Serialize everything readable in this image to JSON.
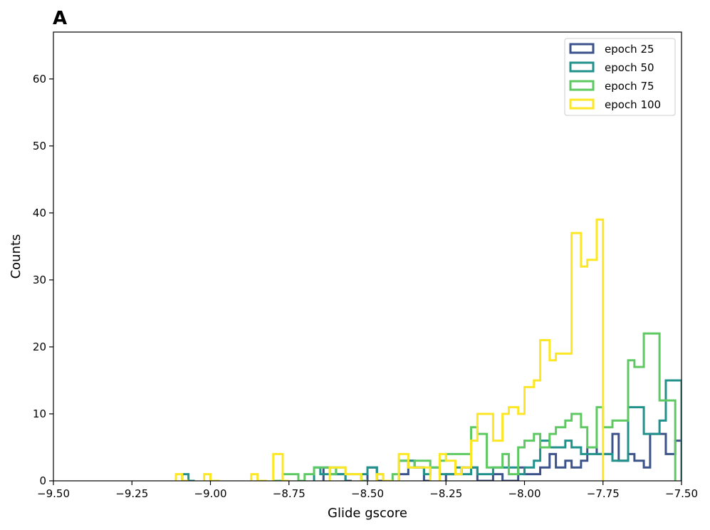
{
  "panel_label": "A",
  "chart_data": {
    "type": "histogram",
    "title": "",
    "xlabel": "Glide gscore",
    "ylabel": "Counts",
    "xlim": [
      -9.5,
      -7.5
    ],
    "ylim": [
      0,
      67
    ],
    "x_ticks": [
      -9.5,
      -9.25,
      -9.0,
      -8.75,
      -8.5,
      -8.25,
      -8.0,
      -7.75,
      -7.5
    ],
    "x_tick_labels": [
      "−9.50",
      "−9.25",
      "−9.00",
      "−8.75",
      "−8.50",
      "−8.25",
      "−8.00",
      "−7.75",
      "−7.50"
    ],
    "y_ticks": [
      0,
      10,
      20,
      30,
      40,
      50,
      60
    ],
    "y_tick_labels": [
      "0",
      "10",
      "20",
      "30",
      "40",
      "50",
      "60"
    ],
    "histtype": "step",
    "bin_width": 0.025,
    "grid": false,
    "legend_position": "top-right",
    "series": [
      {
        "name": "epoch 25",
        "color": "#3b528b",
        "bins": [
          [
            -8.64,
            -8.62,
            2
          ],
          [
            -8.62,
            -8.6,
            1
          ],
          [
            -8.6,
            -8.57,
            1
          ],
          [
            -8.57,
            -8.55,
            0
          ],
          [
            -8.5,
            -8.47,
            2
          ],
          [
            -8.47,
            -8.45,
            0
          ],
          [
            -8.4,
            -8.37,
            1
          ],
          [
            -8.37,
            -8.35,
            3
          ],
          [
            -8.35,
            -8.32,
            2
          ],
          [
            -8.32,
            -8.3,
            0
          ],
          [
            -8.25,
            -8.22,
            1
          ],
          [
            -8.22,
            -8.2,
            1
          ],
          [
            -8.2,
            -8.17,
            2
          ],
          [
            -8.17,
            -8.15,
            2
          ],
          [
            -8.15,
            -8.12,
            0
          ],
          [
            -8.12,
            -8.1,
            0
          ],
          [
            -8.1,
            -8.07,
            1
          ],
          [
            -8.07,
            -8.05,
            0
          ],
          [
            -8.05,
            -8.02,
            0
          ],
          [
            -8.02,
            -8.0,
            2
          ],
          [
            -8.0,
            -7.97,
            1
          ],
          [
            -7.97,
            -7.95,
            1
          ],
          [
            -7.95,
            -7.92,
            2
          ],
          [
            -7.92,
            -7.9,
            4
          ],
          [
            -7.9,
            -7.87,
            2
          ],
          [
            -7.87,
            -7.85,
            3
          ],
          [
            -7.85,
            -7.82,
            2
          ],
          [
            -7.82,
            -7.8,
            3
          ],
          [
            -7.8,
            -7.77,
            5
          ],
          [
            -7.77,
            -7.75,
            4
          ],
          [
            -7.75,
            -7.72,
            4
          ],
          [
            -7.72,
            -7.7,
            7
          ],
          [
            -7.7,
            -7.67,
            3
          ],
          [
            -7.67,
            -7.65,
            4
          ],
          [
            -7.65,
            -7.62,
            3
          ],
          [
            -7.62,
            -7.6,
            2
          ],
          [
            -7.6,
            -7.57,
            7
          ],
          [
            -7.57,
            -7.55,
            7
          ],
          [
            -7.55,
            -7.52,
            4
          ],
          [
            -7.52,
            -7.5,
            6
          ]
        ]
      },
      {
        "name": "epoch 50",
        "color": "#21918c",
        "bins": [
          [
            -9.09,
            -9.07,
            1
          ],
          [
            -9.07,
            -9.05,
            0
          ],
          [
            -8.67,
            -8.65,
            2
          ],
          [
            -8.65,
            -8.62,
            1
          ],
          [
            -8.62,
            -8.6,
            2
          ],
          [
            -8.6,
            -8.57,
            1
          ],
          [
            -8.52,
            -8.5,
            1
          ],
          [
            -8.5,
            -8.47,
            2
          ],
          [
            -8.47,
            -8.45,
            1
          ],
          [
            -8.45,
            -8.42,
            0
          ],
          [
            -8.4,
            -8.37,
            3
          ],
          [
            -8.37,
            -8.35,
            3
          ],
          [
            -8.35,
            -8.32,
            2
          ],
          [
            -8.32,
            -8.3,
            1
          ],
          [
            -8.3,
            -8.27,
            2
          ],
          [
            -8.27,
            -8.25,
            1
          ],
          [
            -8.25,
            -8.22,
            1
          ],
          [
            -8.22,
            -8.2,
            2
          ],
          [
            -8.2,
            -8.17,
            1
          ],
          [
            -8.17,
            -8.15,
            2
          ],
          [
            -8.15,
            -8.12,
            1
          ],
          [
            -8.12,
            -8.1,
            1
          ],
          [
            -8.1,
            -8.07,
            2
          ],
          [
            -8.07,
            -8.05,
            2
          ],
          [
            -8.05,
            -8.02,
            2
          ],
          [
            -8.02,
            -8.0,
            1
          ],
          [
            -8.0,
            -7.97,
            2
          ],
          [
            -7.97,
            -7.95,
            3
          ],
          [
            -7.95,
            -7.92,
            6
          ],
          [
            -7.92,
            -7.9,
            5
          ],
          [
            -7.9,
            -7.87,
            5
          ],
          [
            -7.87,
            -7.85,
            6
          ],
          [
            -7.85,
            -7.82,
            5
          ],
          [
            -7.82,
            -7.8,
            4
          ],
          [
            -7.8,
            -7.77,
            4
          ],
          [
            -7.77,
            -7.75,
            4
          ],
          [
            -7.75,
            -7.72,
            4
          ],
          [
            -7.72,
            -7.7,
            3
          ],
          [
            -7.7,
            -7.67,
            3
          ],
          [
            -7.67,
            -7.65,
            11
          ],
          [
            -7.65,
            -7.62,
            11
          ],
          [
            -7.62,
            -7.6,
            7
          ],
          [
            -7.6,
            -7.57,
            7
          ],
          [
            -7.57,
            -7.55,
            9
          ],
          [
            -7.55,
            -7.52,
            15
          ],
          [
            -7.52,
            -7.5,
            15
          ]
        ]
      },
      {
        "name": "epoch 75",
        "color": "#5ec962",
        "bins": [
          [
            -8.8,
            -8.77,
            0
          ],
          [
            -8.77,
            -8.75,
            1
          ],
          [
            -8.75,
            -8.72,
            1
          ],
          [
            -8.72,
            -8.7,
            0
          ],
          [
            -8.7,
            -8.67,
            1
          ],
          [
            -8.67,
            -8.65,
            2
          ],
          [
            -8.65,
            -8.62,
            2
          ],
          [
            -8.62,
            -8.6,
            1
          ],
          [
            -8.6,
            -8.57,
            2
          ],
          [
            -8.57,
            -8.55,
            1
          ],
          [
            -8.55,
            -8.52,
            1
          ],
          [
            -8.52,
            -8.5,
            0
          ],
          [
            -8.42,
            -8.4,
            1
          ],
          [
            -8.4,
            -8.37,
            3
          ],
          [
            -8.37,
            -8.35,
            2
          ],
          [
            -8.35,
            -8.32,
            3
          ],
          [
            -8.32,
            -8.3,
            3
          ],
          [
            -8.3,
            -8.27,
            2
          ],
          [
            -8.27,
            -8.25,
            3
          ],
          [
            -8.25,
            -8.22,
            4
          ],
          [
            -8.22,
            -8.2,
            4
          ],
          [
            -8.2,
            -8.17,
            4
          ],
          [
            -8.17,
            -8.15,
            8
          ],
          [
            -8.15,
            -8.12,
            7
          ],
          [
            -8.12,
            -8.1,
            2
          ],
          [
            -8.1,
            -8.07,
            2
          ],
          [
            -8.07,
            -8.05,
            4
          ],
          [
            -8.05,
            -8.02,
            1
          ],
          [
            -8.02,
            -8.0,
            5
          ],
          [
            -8.0,
            -7.97,
            6
          ],
          [
            -7.97,
            -7.95,
            7
          ],
          [
            -7.95,
            -7.92,
            5
          ],
          [
            -7.92,
            -7.9,
            7
          ],
          [
            -7.9,
            -7.87,
            8
          ],
          [
            -7.87,
            -7.85,
            9
          ],
          [
            -7.85,
            -7.82,
            10
          ],
          [
            -7.82,
            -7.8,
            8
          ],
          [
            -7.8,
            -7.77,
            5
          ],
          [
            -7.77,
            -7.75,
            11
          ],
          [
            -7.75,
            -7.72,
            8
          ],
          [
            -7.72,
            -7.7,
            9
          ],
          [
            -7.7,
            -7.67,
            9
          ],
          [
            -7.67,
            -7.65,
            18
          ],
          [
            -7.65,
            -7.62,
            17
          ],
          [
            -7.62,
            -7.6,
            22
          ],
          [
            -7.6,
            -7.57,
            22
          ],
          [
            -7.57,
            -7.55,
            12
          ],
          [
            -7.55,
            -7.52,
            12
          ]
        ]
      },
      {
        "name": "epoch 100",
        "color": "#fde725",
        "bins": [
          [
            -9.11,
            -9.09,
            1
          ],
          [
            -9.09,
            -9.07,
            0
          ],
          [
            -9.02,
            -9.0,
            1
          ],
          [
            -9.0,
            -8.97,
            0
          ],
          [
            -8.87,
            -8.85,
            1
          ],
          [
            -8.85,
            -8.82,
            0
          ],
          [
            -8.8,
            -8.77,
            4
          ],
          [
            -8.77,
            -8.75,
            0
          ],
          [
            -8.62,
            -8.6,
            2
          ],
          [
            -8.6,
            -8.57,
            2
          ],
          [
            -8.57,
            -8.55,
            1
          ],
          [
            -8.55,
            -8.52,
            1
          ],
          [
            -8.47,
            -8.45,
            1
          ],
          [
            -8.45,
            -8.42,
            0
          ],
          [
            -8.4,
            -8.37,
            4
          ],
          [
            -8.37,
            -8.35,
            2
          ],
          [
            -8.35,
            -8.32,
            2
          ],
          [
            -8.32,
            -8.3,
            2
          ],
          [
            -8.27,
            -8.25,
            4
          ],
          [
            -8.25,
            -8.22,
            3
          ],
          [
            -8.22,
            -8.2,
            1
          ],
          [
            -8.2,
            -8.17,
            2
          ],
          [
            -8.17,
            -8.15,
            6
          ],
          [
            -8.15,
            -8.12,
            10
          ],
          [
            -8.12,
            -8.1,
            10
          ],
          [
            -8.1,
            -8.07,
            6
          ],
          [
            -8.07,
            -8.05,
            10
          ],
          [
            -8.05,
            -8.02,
            11
          ],
          [
            -8.02,
            -8.0,
            10
          ],
          [
            -8.0,
            -7.97,
            14
          ],
          [
            -7.97,
            -7.95,
            15
          ],
          [
            -7.95,
            -7.92,
            21
          ],
          [
            -7.92,
            -7.9,
            18
          ],
          [
            -7.9,
            -7.87,
            19
          ],
          [
            -7.87,
            -7.85,
            19
          ],
          [
            -7.85,
            -7.82,
            37
          ],
          [
            -7.82,
            -7.8,
            32
          ],
          [
            -7.8,
            -7.77,
            33
          ],
          [
            -7.77,
            -7.75,
            39
          ]
        ]
      }
    ]
  }
}
